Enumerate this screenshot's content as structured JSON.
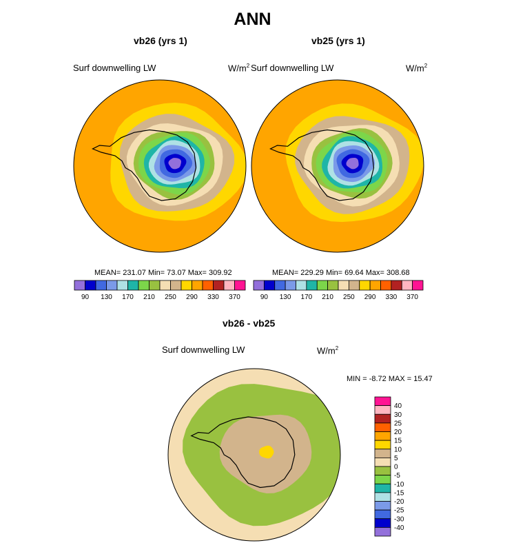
{
  "figure_title": "ANN",
  "colors": {
    "seq": [
      "#9370db",
      "#0000cd",
      "#4169e1",
      "#7b9ae8",
      "#afe1e5",
      "#1fb5a7",
      "#7cd64a",
      "#99c140",
      "#f5deb3",
      "#d2b48c",
      "#ffd700",
      "#ffa500",
      "#ff6100",
      "#b22222",
      "#ffb6c1",
      "#ff1493"
    ],
    "diff": [
      "#9370db",
      "#0000cd",
      "#4169e1",
      "#7b9ae8",
      "#afe1e5",
      "#1fb5a7",
      "#7cd64a",
      "#99c140",
      "#f5deb3",
      "#d2b48c",
      "#ffd700",
      "#ffa500",
      "#ff6100",
      "#b22222",
      "#ffb6c1",
      "#ff1493"
    ]
  },
  "chart_data": [
    {
      "type": "heatmap",
      "projection": "south polar stereographic",
      "title": "vb26 (yrs 1)",
      "variable": "Surf downwelling LW",
      "units": "W/m",
      "units_exp": "2",
      "stats": {
        "mean": "231.07",
        "min": "73.07",
        "max": "309.92"
      },
      "stats_text": "MEAN= 231.07  Min=  73.07  Max= 309.92",
      "levels": [
        90,
        110,
        130,
        150,
        170,
        190,
        210,
        230,
        250,
        270,
        290,
        310,
        330,
        350,
        370
      ],
      "tick_labels": [
        "90",
        "130",
        "170",
        "210",
        "250",
        "290",
        "330",
        "370"
      ],
      "field_zones": [
        {
          "value": 305,
          "extent": 1.0
        },
        {
          "value": 285,
          "extent": 0.75
        },
        {
          "value": 260,
          "extent": 0.62
        },
        {
          "value": 245,
          "extent": 0.52
        },
        {
          "value": 215,
          "extent": 0.44
        },
        {
          "value": 200,
          "extent": 0.39
        },
        {
          "value": 180,
          "extent": 0.33
        },
        {
          "value": 160,
          "extent": 0.28
        },
        {
          "value": 140,
          "extent": 0.23
        },
        {
          "value": 120,
          "extent": 0.18
        },
        {
          "value": 100,
          "extent": 0.12
        },
        {
          "value": 80,
          "extent": 0.07
        }
      ]
    },
    {
      "type": "heatmap",
      "projection": "south polar stereographic",
      "title": "vb25 (yrs 1)",
      "variable": "Surf downwelling LW",
      "units": "W/m",
      "units_exp": "2",
      "stats": {
        "mean": "229.29",
        "min": "69.64",
        "max": "308.68"
      },
      "stats_text": "MEAN= 229.29  Min=  69.64  Max= 308.68",
      "levels": [
        90,
        110,
        130,
        150,
        170,
        190,
        210,
        230,
        250,
        270,
        290,
        310,
        330,
        350,
        370
      ],
      "tick_labels": [
        "90",
        "130",
        "170",
        "210",
        "250",
        "290",
        "330",
        "370"
      ],
      "field_zones": [
        {
          "value": 305,
          "extent": 1.0
        },
        {
          "value": 285,
          "extent": 0.75
        },
        {
          "value": 260,
          "extent": 0.62
        },
        {
          "value": 245,
          "extent": 0.52
        },
        {
          "value": 215,
          "extent": 0.44
        },
        {
          "value": 200,
          "extent": 0.39
        },
        {
          "value": 180,
          "extent": 0.33
        },
        {
          "value": 160,
          "extent": 0.28
        },
        {
          "value": 140,
          "extent": 0.23
        },
        {
          "value": 120,
          "extent": 0.18
        },
        {
          "value": 100,
          "extent": 0.12
        },
        {
          "value": 80,
          "extent": 0.07
        }
      ]
    },
    {
      "type": "heatmap",
      "projection": "south polar stereographic",
      "title": "vb26 - vb25",
      "variable": "Surf downwelling LW",
      "units": "W/m",
      "units_exp": "2",
      "stats": {
        "min": "-8.72",
        "max": "15.47"
      },
      "stats_text": "MIN =  -8.72 MAX =  15.47",
      "levels": [
        -40,
        -30,
        -25,
        -20,
        -15,
        -10,
        -5,
        0,
        5,
        10,
        15,
        20,
        25,
        30,
        40
      ],
      "tick_labels": [
        "40",
        "30",
        "25",
        "20",
        "15",
        "10",
        "5",
        "0",
        "-5",
        "-10",
        "-15",
        "-20",
        "-25",
        "-30",
        "-40"
      ],
      "field_zones": [
        {
          "value": 2,
          "extent": 1.0
        },
        {
          "value": -2,
          "extent": 0.9
        },
        {
          "value": 7,
          "extent": 0.5
        },
        {
          "value": 12,
          "extent": 0.08
        }
      ]
    }
  ]
}
